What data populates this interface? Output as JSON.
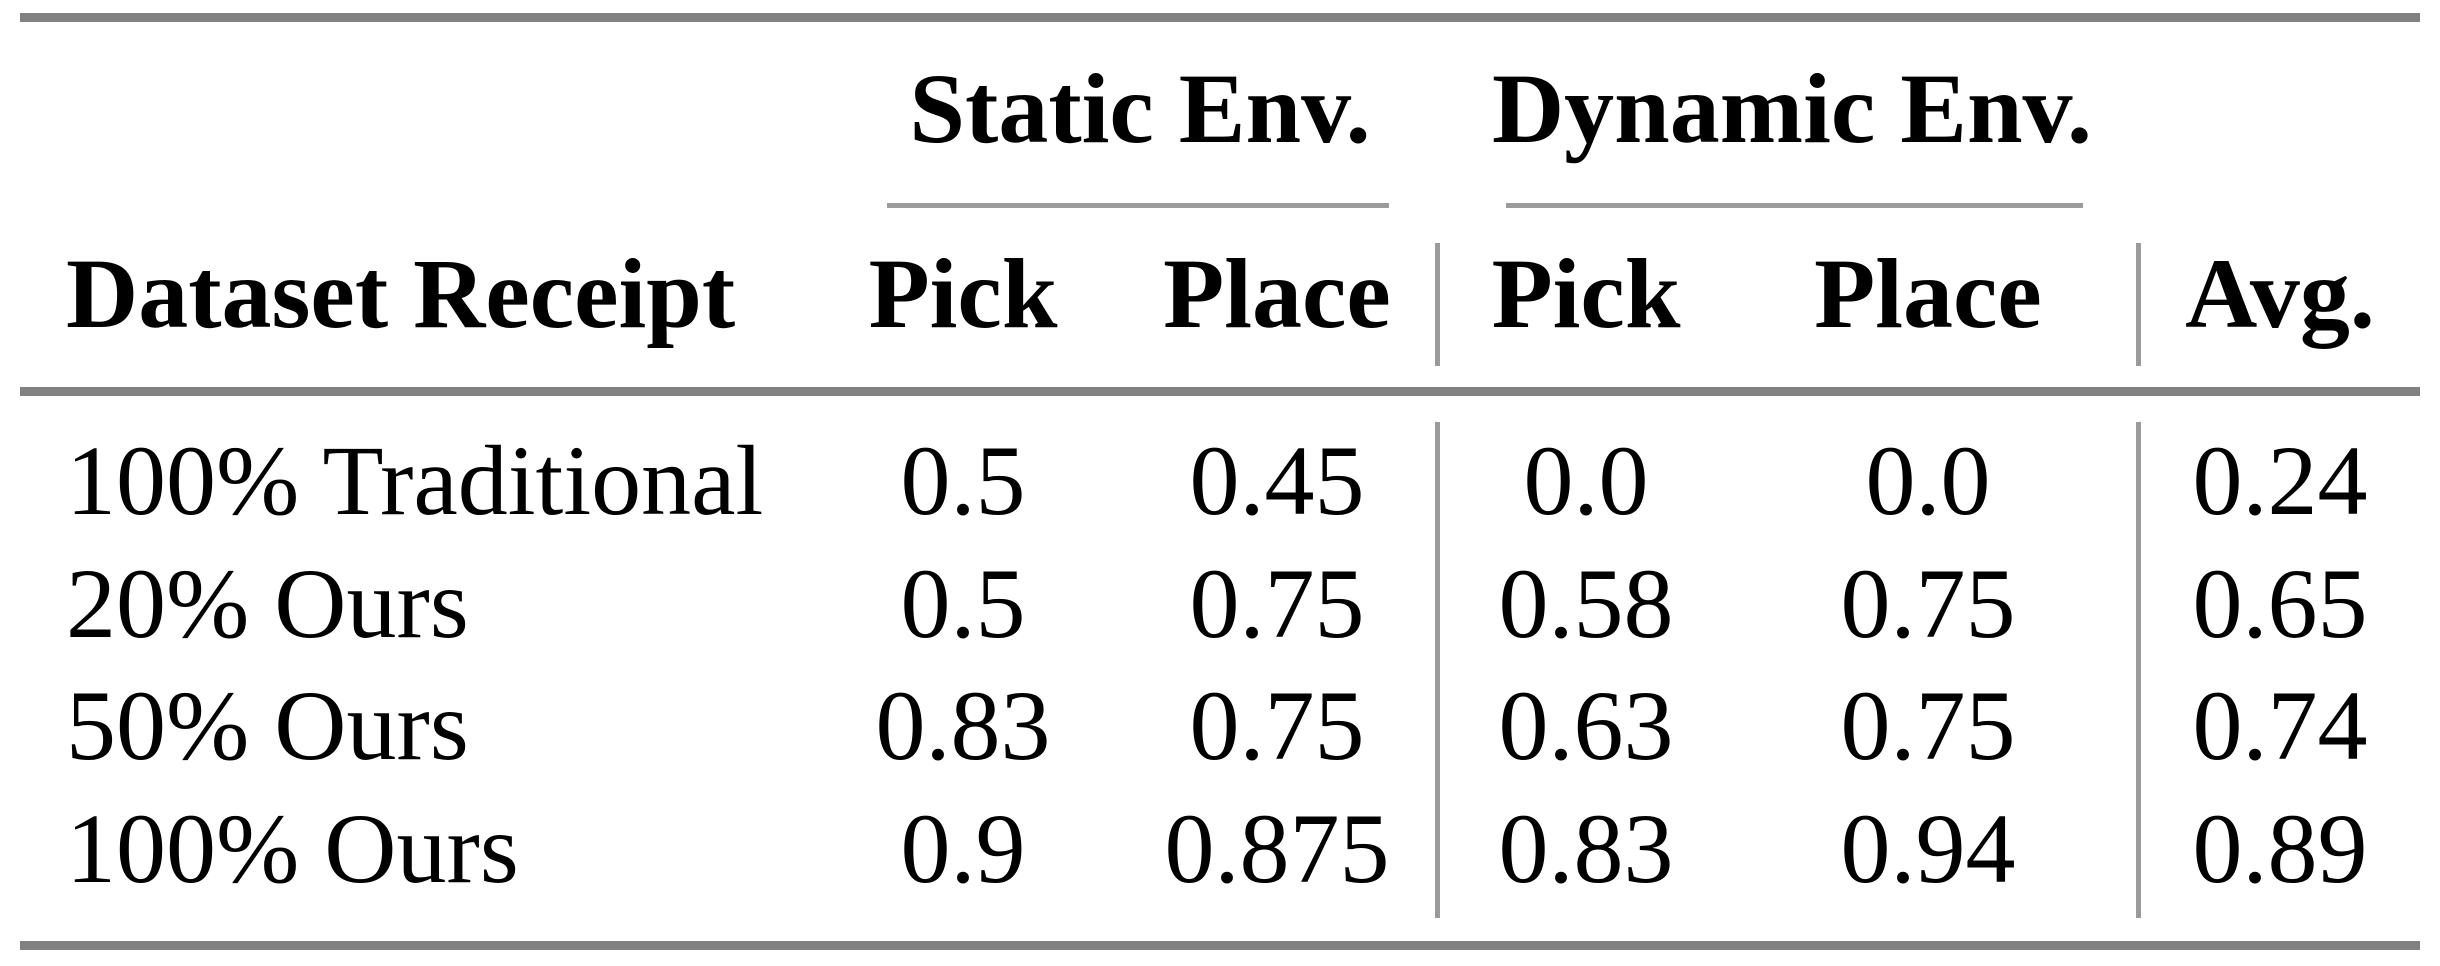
{
  "table": {
    "group_headers": {
      "static": "Static Env.",
      "dynamic": "Dynamic Env."
    },
    "column_headers": {
      "dataset": "Dataset Receipt",
      "static_pick": "Pick",
      "static_place": "Place",
      "dynamic_pick": "Pick",
      "dynamic_place": "Place",
      "avg": "Avg."
    },
    "rows": [
      {
        "label": "100% Traditional",
        "cells": [
          "0.5",
          "0.45",
          "0.0",
          "0.0",
          "0.24"
        ]
      },
      {
        "label": "20% Ours",
        "cells": [
          "0.5",
          "0.75",
          "0.58",
          "0.75",
          "0.65"
        ]
      },
      {
        "label": "50% Ours",
        "cells": [
          "0.83",
          "0.75",
          "0.63",
          "0.75",
          "0.74"
        ]
      },
      {
        "label": "100% Ours",
        "cells": [
          "0.9",
          "0.875",
          "0.83",
          "0.94",
          "0.89"
        ]
      }
    ],
    "colors": {
      "thick_rule": "#818181",
      "thin_rule": "#9b9b9b",
      "text": "#000000",
      "background": "#ffffff"
    }
  },
  "chart_data": {
    "type": "table",
    "title": "",
    "row_header": "Dataset Receipt",
    "group_columns": [
      {
        "label": "Static Env.",
        "columns": [
          "Pick",
          "Place"
        ]
      },
      {
        "label": "Dynamic Env.",
        "columns": [
          "Pick",
          "Place"
        ]
      }
    ],
    "extra_column": "Avg.",
    "rows": [
      {
        "label": "100% Traditional",
        "values": [
          0.5,
          0.45,
          0.0,
          0.0,
          0.24
        ]
      },
      {
        "label": "20% Ours",
        "values": [
          0.5,
          0.75,
          0.58,
          0.75,
          0.65
        ]
      },
      {
        "label": "50% Ours",
        "values": [
          0.83,
          0.75,
          0.63,
          0.75,
          0.74
        ]
      },
      {
        "label": "100% Ours",
        "values": [
          0.9,
          0.875,
          0.83,
          0.94,
          0.89
        ]
      }
    ]
  }
}
